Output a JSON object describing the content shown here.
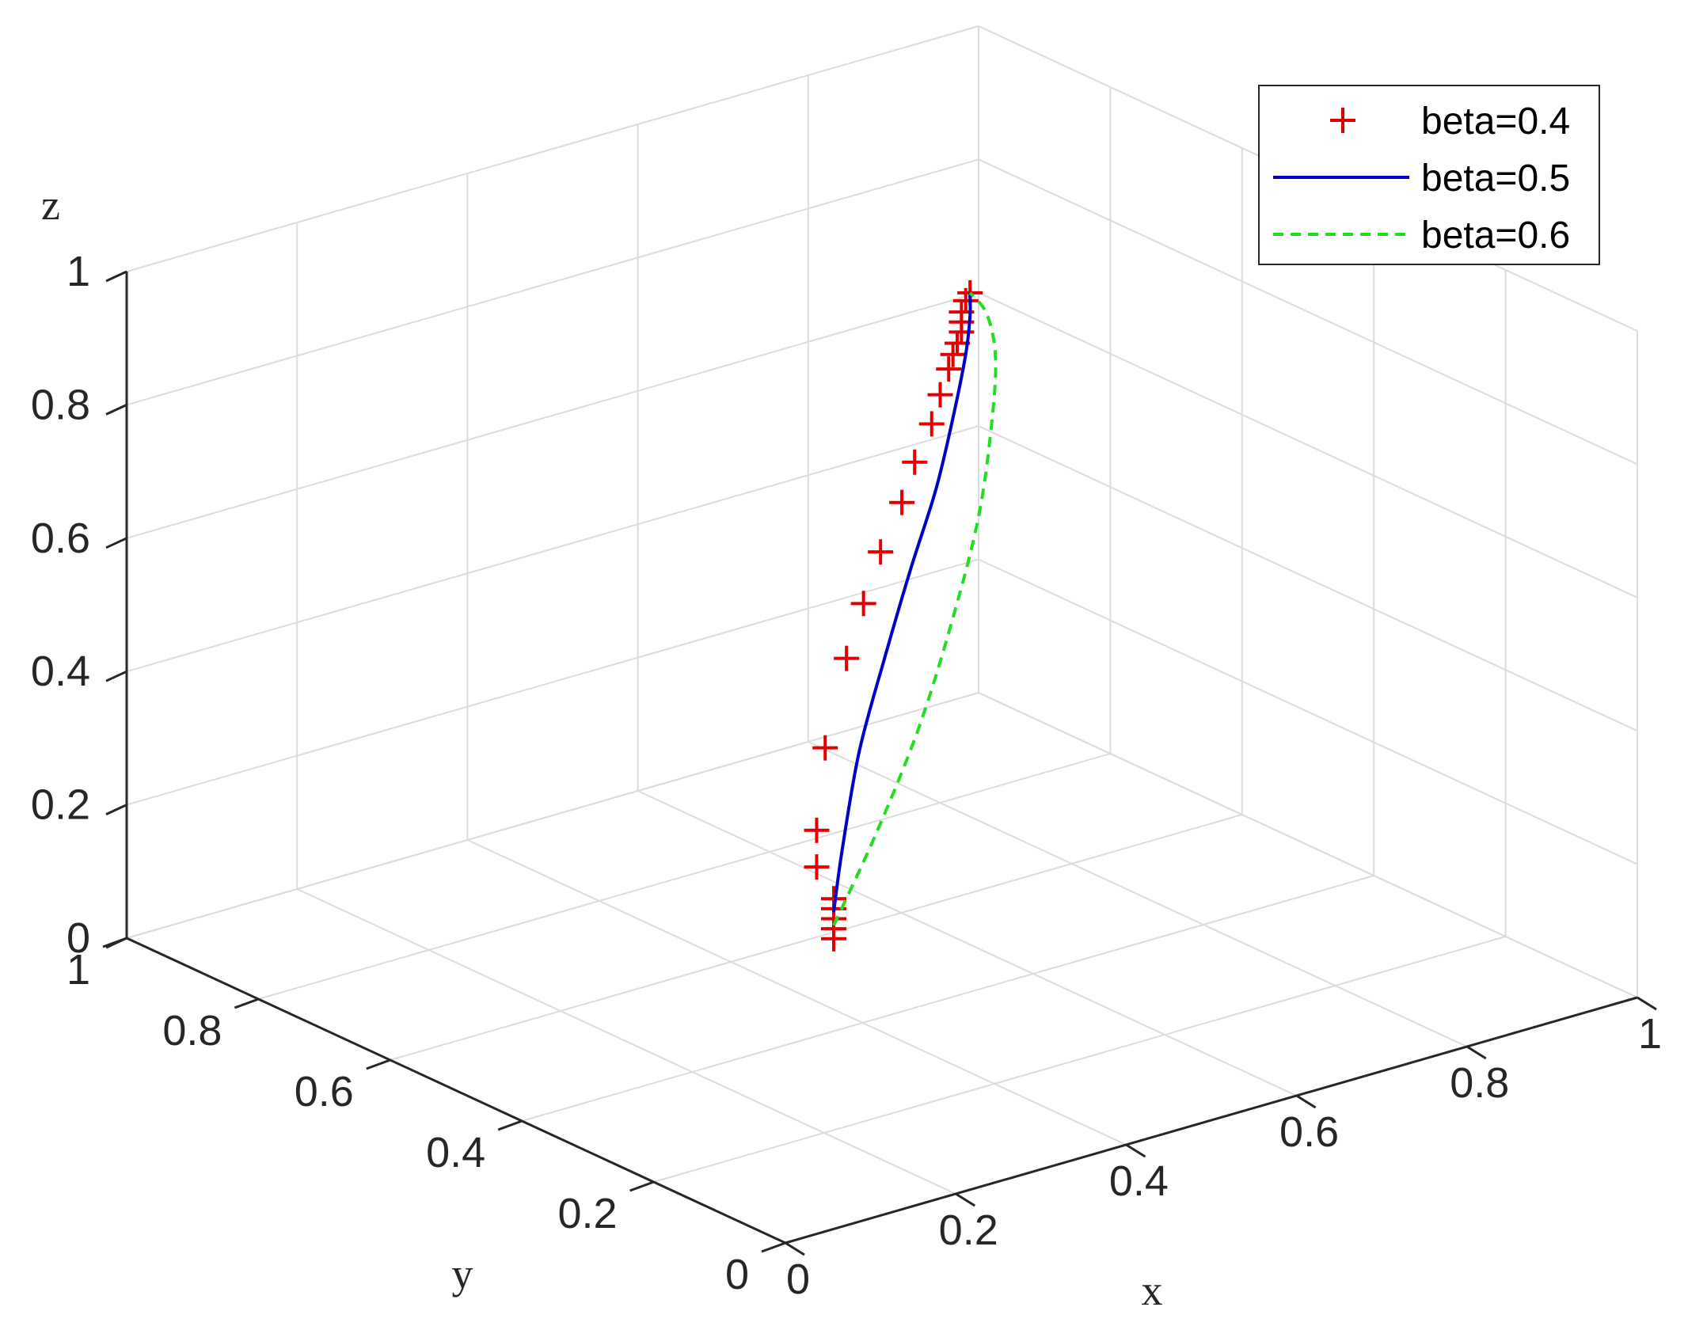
{
  "chart_data": {
    "type": "line3d",
    "xlabel": "x",
    "ylabel": "y",
    "zlabel": "z",
    "xlim": [
      0,
      1
    ],
    "ylim": [
      0,
      1
    ],
    "zlim": [
      0,
      1
    ],
    "x_ticks": [
      "0",
      "0.2",
      "0.4",
      "0.6",
      "0.8",
      "1"
    ],
    "y_ticks": [
      "0",
      "0.2",
      "0.4",
      "0.6",
      "0.8",
      "1"
    ],
    "z_ticks": [
      "0",
      "0.2",
      "0.4",
      "0.6",
      "0.8",
      "1"
    ],
    "grid": true,
    "legend_position": "top-right",
    "colors": {
      "beta=0.4": "#e00000",
      "beta=0.5": "#0000c8",
      "beta=0.6": "#22dd22"
    },
    "series": [
      {
        "name": "beta=0.4",
        "style": "markers-plus",
        "points": [
          [
            0.25,
            0.25,
            0.25
          ],
          [
            0.25,
            0.25,
            0.265
          ],
          [
            0.25,
            0.25,
            0.28
          ],
          [
            0.25,
            0.25,
            0.295
          ],
          [
            0.25,
            0.25,
            0.31
          ],
          [
            0.23,
            0.25,
            0.365
          ],
          [
            0.23,
            0.25,
            0.42
          ],
          [
            0.24,
            0.25,
            0.54
          ],
          [
            0.265,
            0.25,
            0.665
          ],
          [
            0.285,
            0.25,
            0.74
          ],
          [
            0.305,
            0.25,
            0.81
          ],
          [
            0.33,
            0.25,
            0.875
          ],
          [
            0.345,
            0.25,
            0.93
          ],
          [
            0.365,
            0.25,
            0.98
          ],
          [
            0.375,
            0.25,
            1.02
          ],
          [
            0.385,
            0.25,
            1.055
          ],
          [
            0.39,
            0.25,
            1.075
          ],
          [
            0.395,
            0.25,
            1.09
          ],
          [
            0.4,
            0.25,
            1.105
          ],
          [
            0.4,
            0.25,
            1.12
          ],
          [
            0.4,
            0.25,
            1.135
          ],
          [
            0.405,
            0.25,
            1.15
          ],
          [
            0.41,
            0.25,
            1.16
          ]
        ]
      },
      {
        "name": "beta=0.5",
        "style": "solid",
        "points": [
          [
            0.25,
            0.25,
            0.29
          ],
          [
            0.26,
            0.25,
            0.38
          ],
          [
            0.28,
            0.25,
            0.52
          ],
          [
            0.31,
            0.25,
            0.65
          ],
          [
            0.34,
            0.25,
            0.77
          ],
          [
            0.37,
            0.25,
            0.88
          ],
          [
            0.39,
            0.25,
            0.98
          ],
          [
            0.405,
            0.25,
            1.07
          ],
          [
            0.41,
            0.25,
            1.125
          ],
          [
            0.41,
            0.25,
            1.16
          ]
        ]
      },
      {
        "name": "beta=0.6",
        "style": "dashed",
        "points": [
          [
            0.25,
            0.25,
            0.27
          ],
          [
            0.3,
            0.25,
            0.39
          ],
          [
            0.35,
            0.25,
            0.53
          ],
          [
            0.39,
            0.25,
            0.68
          ],
          [
            0.42,
            0.25,
            0.82
          ],
          [
            0.435,
            0.25,
            0.95
          ],
          [
            0.44,
            0.25,
            1.05
          ],
          [
            0.43,
            0.25,
            1.12
          ],
          [
            0.41,
            0.25,
            1.16
          ]
        ]
      }
    ]
  }
}
